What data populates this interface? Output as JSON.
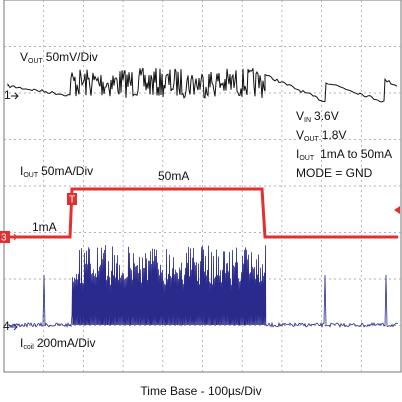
{
  "markers": {
    "ch1": "1",
    "ch3": "3",
    "ch4": "4",
    "trigger": "T"
  },
  "labels": {
    "vout_scale": {
      "symbol": "V",
      "sub": "OUT",
      "text": "50mV/Div"
    },
    "iout_scale": {
      "symbol": "I",
      "sub": "OUT",
      "text": "50mA/Div"
    },
    "icoil_scale": {
      "symbol": "I",
      "sub": "coil",
      "text": "200mA/Div"
    },
    "high_level": "50mA",
    "low_level": "1mA"
  },
  "conditions": [
    {
      "symbol": "V",
      "sub": "IN",
      "text": "3.6V"
    },
    {
      "symbol": "V",
      "sub": "OUT",
      "text": "1.8V"
    },
    {
      "symbol": "I",
      "sub": "OUT",
      "text": "1mA to 50mA"
    },
    {
      "text": "MODE = GND"
    }
  ],
  "footer": "Time Base - 100µs/Div"
}
